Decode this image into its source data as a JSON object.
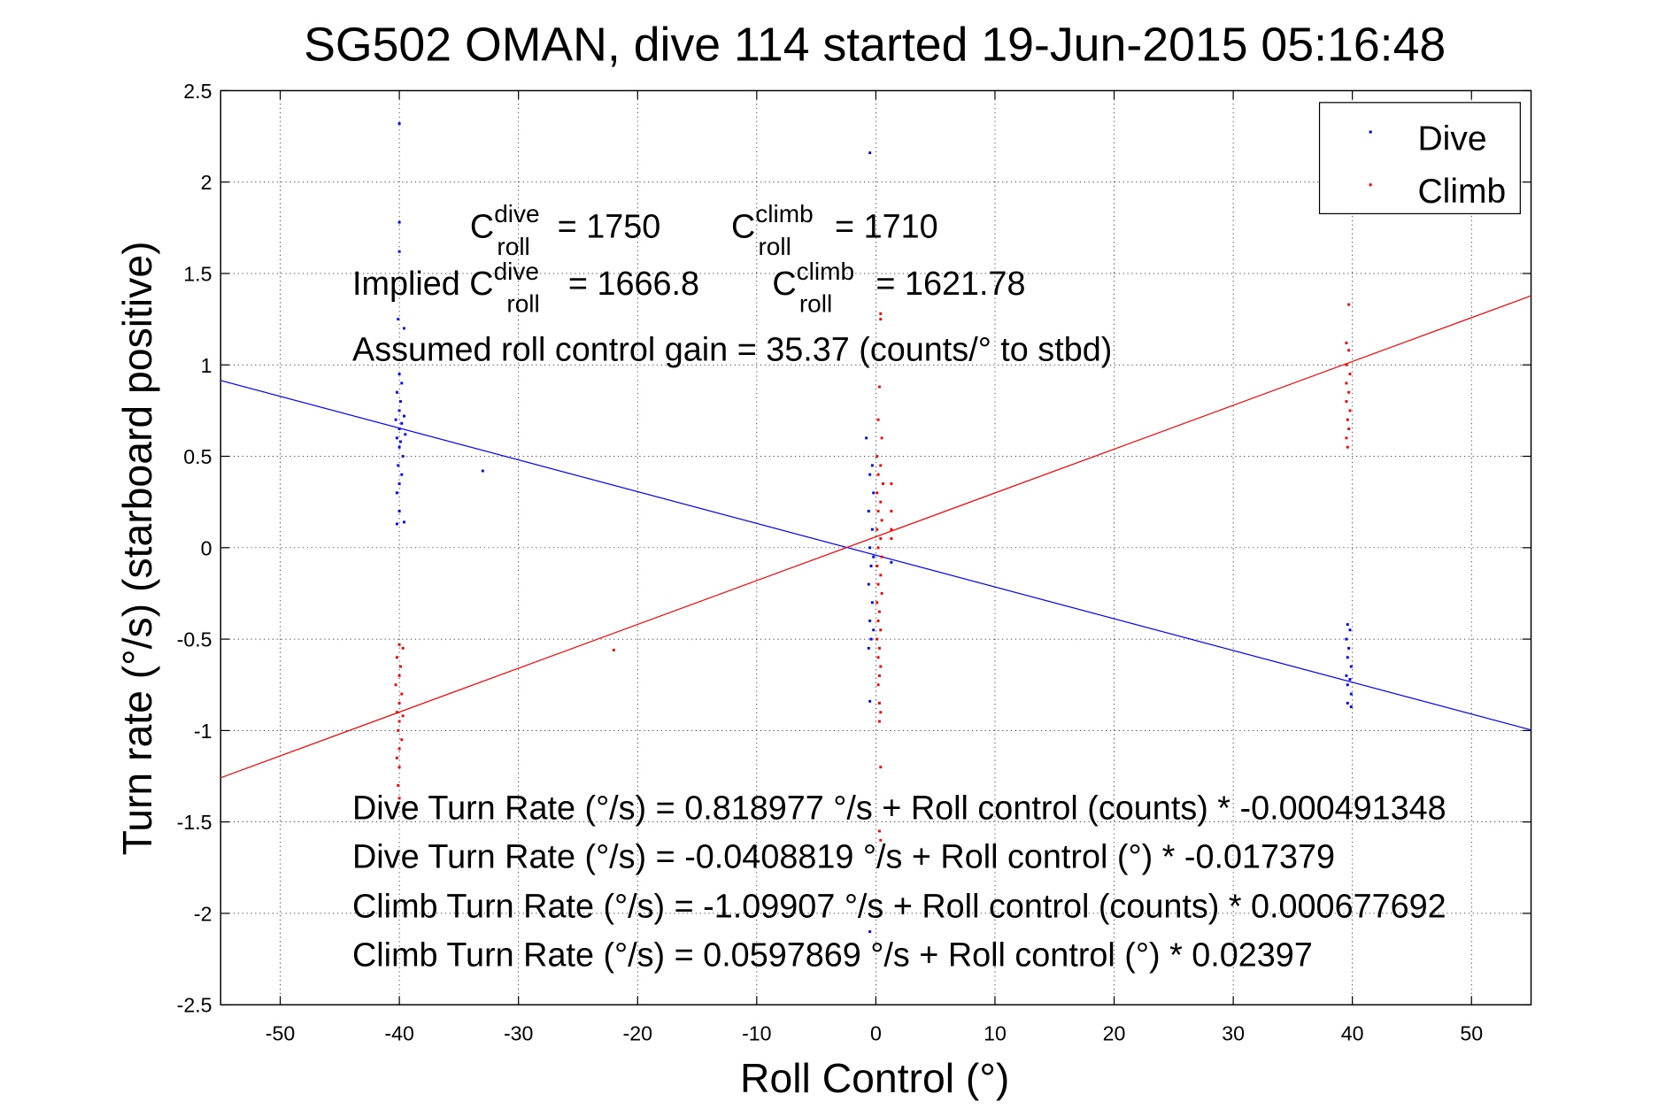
{
  "chart_data": {
    "type": "scatter",
    "title": "SG502 OMAN, dive 114 started 19-Jun-2015 05:16:48",
    "xlabel": "Roll Control (°)",
    "ylabel": "Turn rate (°/s)  (starboard positive)",
    "xlim": [
      -55,
      55
    ],
    "ylim": [
      -2.5,
      2.5
    ],
    "xticks": [
      -50,
      -40,
      -30,
      -20,
      -10,
      0,
      10,
      20,
      30,
      40,
      50
    ],
    "yticks": [
      -2.5,
      -2,
      -1.5,
      -1,
      -0.5,
      0,
      0.5,
      1,
      1.5,
      2,
      2.5
    ],
    "grid": true,
    "legend": {
      "placement": "top-right",
      "entries": [
        "Dive",
        "Climb"
      ]
    },
    "series": [
      {
        "name": "Dive",
        "color": "#0000ff",
        "points": [
          [
            -40,
            2.32
          ],
          [
            -40,
            1.78
          ],
          [
            -40,
            1.62
          ],
          [
            -40.1,
            1.25
          ],
          [
            -39.6,
            1.2
          ],
          [
            -40,
            0.95
          ],
          [
            -39.8,
            0.9
          ],
          [
            -40.2,
            0.85
          ],
          [
            -39.9,
            0.8
          ],
          [
            -40,
            0.75
          ],
          [
            -39.6,
            0.72
          ],
          [
            -40.3,
            0.7
          ],
          [
            -39.8,
            0.68
          ],
          [
            -40,
            0.65
          ],
          [
            -39.5,
            0.62
          ],
          [
            -40.2,
            0.6
          ],
          [
            -39.9,
            0.58
          ],
          [
            -40,
            0.55
          ],
          [
            -39.7,
            0.5
          ],
          [
            -40.1,
            0.45
          ],
          [
            -39.8,
            0.4
          ],
          [
            -40,
            0.35
          ],
          [
            -40.2,
            0.3
          ],
          [
            -40,
            0.2
          ],
          [
            -40.2,
            0.13
          ],
          [
            -39.6,
            0.14
          ],
          [
            -33,
            0.42
          ],
          [
            -0.5,
            2.16
          ],
          [
            -0.8,
            0.6
          ],
          [
            -0.3,
            0.45
          ],
          [
            -0.5,
            0.4
          ],
          [
            -0.2,
            0.3
          ],
          [
            -0.6,
            0.2
          ],
          [
            -0.3,
            0.1
          ],
          [
            -0.5,
            0
          ],
          [
            -0.2,
            -0.05
          ],
          [
            -0.4,
            -0.1
          ],
          [
            -0.6,
            -0.2
          ],
          [
            -0.3,
            -0.3
          ],
          [
            -0.5,
            -0.4
          ],
          [
            -0.2,
            -0.45
          ],
          [
            -0.4,
            -0.5
          ],
          [
            -0.6,
            -0.55
          ],
          [
            -0.5,
            -0.84
          ],
          [
            -0.5,
            -2.1
          ],
          [
            1.3,
            -0.08
          ],
          [
            39.6,
            -0.42
          ],
          [
            39.8,
            -0.45
          ],
          [
            39.5,
            -0.5
          ],
          [
            39.7,
            -0.55
          ],
          [
            39.6,
            -0.6
          ],
          [
            39.9,
            -0.65
          ],
          [
            39.5,
            -0.7
          ],
          [
            39.8,
            -0.72
          ],
          [
            39.6,
            -0.75
          ],
          [
            39.9,
            -0.8
          ],
          [
            39.6,
            -0.85
          ],
          [
            39.9,
            -0.87
          ]
        ],
        "fit": {
          "intercept": -0.0408819,
          "slope": -0.017379
        }
      },
      {
        "name": "Climb",
        "color": "#ff0000",
        "points": [
          [
            -40,
            -0.53
          ],
          [
            -39.7,
            -0.55
          ],
          [
            -40.2,
            -0.6
          ],
          [
            -39.9,
            -0.65
          ],
          [
            -40,
            -0.7
          ],
          [
            -40.3,
            -0.75
          ],
          [
            -39.8,
            -0.8
          ],
          [
            -40,
            -0.85
          ],
          [
            -40.2,
            -0.9
          ],
          [
            -39.7,
            -0.92
          ],
          [
            -40,
            -0.95
          ],
          [
            -40.1,
            -1.0
          ],
          [
            -39.8,
            -1.05
          ],
          [
            -40,
            -1.1
          ],
          [
            -40.2,
            -1.15
          ],
          [
            -40,
            -1.2
          ],
          [
            -40.1,
            -1.3
          ],
          [
            -40,
            -1.37
          ],
          [
            -22,
            -0.56
          ],
          [
            0.4,
            1.28
          ],
          [
            0.4,
            1.25
          ],
          [
            0.3,
            0.88
          ],
          [
            0.2,
            0.7
          ],
          [
            0.5,
            0.6
          ],
          [
            0.1,
            0.5
          ],
          [
            0.4,
            0.45
          ],
          [
            0.2,
            0.4
          ],
          [
            0.6,
            0.35
          ],
          [
            0.1,
            0.3
          ],
          [
            0.4,
            0.25
          ],
          [
            0.2,
            0.2
          ],
          [
            0.5,
            0.15
          ],
          [
            0.1,
            0.1
          ],
          [
            0.4,
            0.05
          ],
          [
            0.2,
            0
          ],
          [
            0.5,
            -0.05
          ],
          [
            0.1,
            -0.1
          ],
          [
            0.4,
            -0.15
          ],
          [
            0.2,
            -0.2
          ],
          [
            0.5,
            -0.25
          ],
          [
            0.1,
            -0.3
          ],
          [
            0.3,
            -0.35
          ],
          [
            0.2,
            -0.4
          ],
          [
            0.4,
            -0.45
          ],
          [
            0.1,
            -0.5
          ],
          [
            0.3,
            -0.55
          ],
          [
            0.2,
            -0.6
          ],
          [
            0.4,
            -0.65
          ],
          [
            0.3,
            -0.7
          ],
          [
            0.2,
            -0.75
          ],
          [
            0.3,
            -0.85
          ],
          [
            0.4,
            -0.9
          ],
          [
            0.3,
            -0.95
          ],
          [
            0.4,
            -1.2
          ],
          [
            0.3,
            -1.55
          ],
          [
            0.4,
            -1.6
          ],
          [
            1.3,
            0.35
          ],
          [
            1.3,
            0.2
          ],
          [
            1.3,
            0.1
          ],
          [
            1.3,
            0.05
          ],
          [
            39.7,
            1.33
          ],
          [
            39.5,
            1.12
          ],
          [
            39.7,
            1.08
          ],
          [
            39.5,
            1.0
          ],
          [
            39.8,
            0.95
          ],
          [
            39.5,
            0.9
          ],
          [
            39.7,
            0.85
          ],
          [
            39.5,
            0.8
          ],
          [
            39.8,
            0.75
          ],
          [
            39.6,
            0.7
          ],
          [
            39.7,
            0.65
          ],
          [
            39.5,
            0.6
          ],
          [
            39.6,
            0.55
          ]
        ],
        "fit": {
          "intercept": 0.0597869,
          "slope": 0.02397
        }
      }
    ],
    "annotations": {
      "c_dive": {
        "base": "C",
        "sup": "dive",
        "sub": "roll",
        "value": "= 1750"
      },
      "c_climb": {
        "base": "C",
        "sup": "climb",
        "sub": "roll",
        "value": "= 1710"
      },
      "implied_prefix": "Implied C",
      "implied_dive": {
        "sup": "dive",
        "sub": "roll",
        "value": "= 1666.8"
      },
      "implied_climb": {
        "base": "C",
        "sup": "climb",
        "sub": "roll",
        "value": "= 1621.78"
      },
      "gain": "Assumed roll control gain = 35.37 (counts/° to stbd)",
      "eq1": "Dive Turn Rate (°/s) = 0.818977 °/s + Roll control (counts) * -0.000491348",
      "eq2": "Dive Turn Rate (°/s) = -0.0408819 °/s + Roll control (°) * -0.017379",
      "eq3": "Climb Turn Rate (°/s) = -1.09907 °/s + Roll control (counts) * 0.000677692",
      "eq4": "Climb Turn Rate (°/s) = 0.0597869 °/s + Roll control (°) * 0.02397"
    }
  }
}
